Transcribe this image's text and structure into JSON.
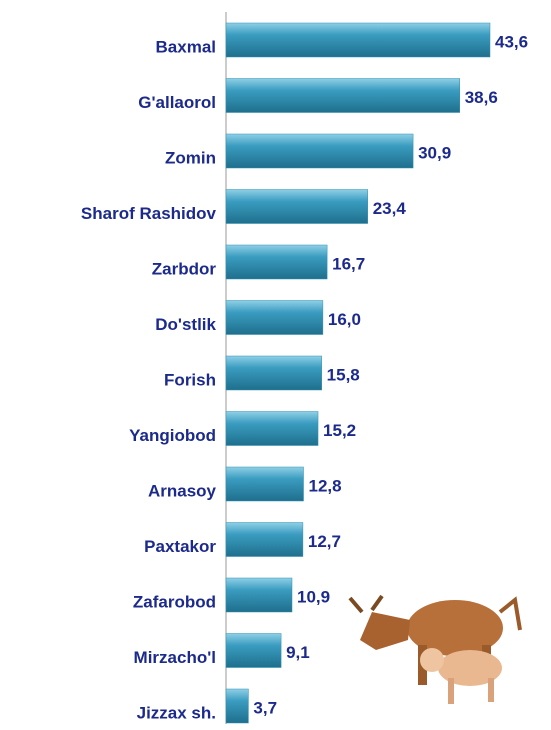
{
  "chart_data": {
    "type": "bar",
    "orientation": "horizontal",
    "categories": [
      "Baxmal",
      "G'allaorol",
      "Zomin",
      "Sharof Rashidov",
      "Zarbdor",
      "Do'stlik",
      "Forish",
      "Yangiobod",
      "Arnasoy",
      "Paxtakor",
      "Zafarobod",
      "Mirzacho'l",
      "Jizzax sh."
    ],
    "values": [
      43.6,
      38.6,
      30.9,
      23.4,
      16.7,
      16.0,
      15.8,
      15.2,
      12.8,
      12.7,
      10.9,
      9.1,
      3.7
    ],
    "value_labels": [
      "43,6",
      "38,6",
      "30,9",
      "23,4",
      "16,7",
      "16,0",
      "15,8",
      "15,2",
      "12,8",
      "12,7",
      "10,9",
      "9,1",
      "3,7"
    ],
    "color": "#2f8fb2"
  }
}
